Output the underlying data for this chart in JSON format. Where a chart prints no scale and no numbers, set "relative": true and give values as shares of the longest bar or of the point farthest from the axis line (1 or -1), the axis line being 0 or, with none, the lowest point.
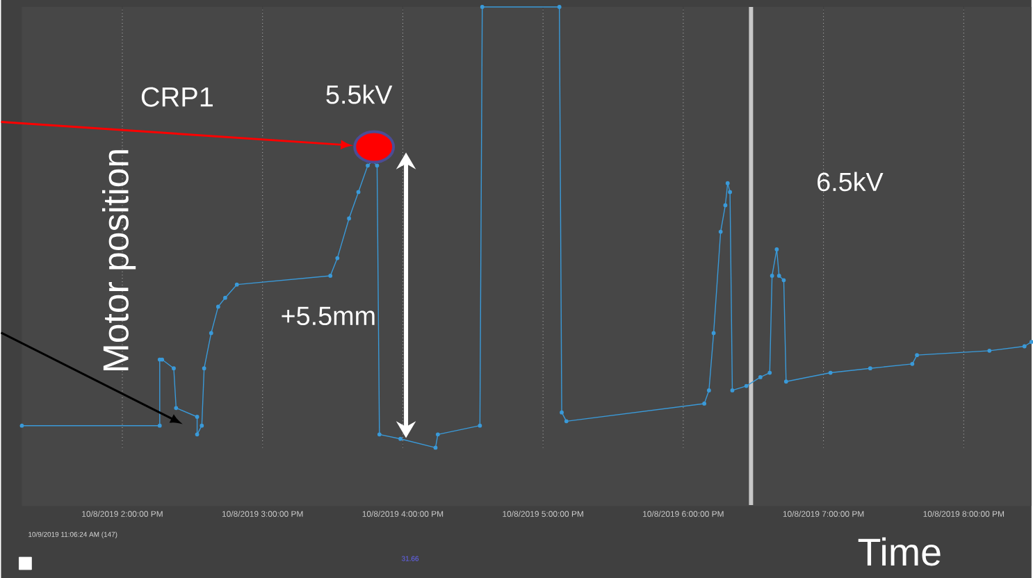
{
  "chart_data": {
    "type": "line",
    "relative": true,
    "xlabel": "Time",
    "ylabel": "Motor position",
    "marker": "circle",
    "grid": "x",
    "xlim": [
      "2019-10-08T13:17",
      "2019-10-08T20:29"
    ],
    "xticks": [
      {
        "value": "2019-10-08T14:00",
        "label": "10/8/2019 2:00:00 PM"
      },
      {
        "value": "2019-10-08T15:00",
        "label": "10/8/2019 3:00:00 PM"
      },
      {
        "value": "2019-10-08T16:00",
        "label": "10/8/2019 4:00:00 PM"
      },
      {
        "value": "2019-10-08T17:00",
        "label": "10/8/2019 5:00:00 PM"
      },
      {
        "value": "2019-10-08T18:00",
        "label": "10/8/2019 6:00:00 PM"
      },
      {
        "value": "2019-10-08T19:00",
        "label": "10/8/2019 7:00:00 PM"
      },
      {
        "value": "2019-10-08T20:00",
        "label": "10/8/2019 8:00:00 PM"
      }
    ],
    "ref_lines": [
      {
        "axis": "x",
        "value": "2019-10-08T18:29",
        "color": "#c8c8c8"
      }
    ],
    "annotations": [
      "CRP1",
      "5.5kV",
      "+5.5mm",
      "6.5kV",
      "10/9/2019 11:06:24 AM (147)",
      "31.66"
    ],
    "series": [
      {
        "color": "#3a9ad9",
        "x": [
          "2019-10-08T13:17",
          "2019-10-08T14:16",
          "2019-10-08T14:16",
          "2019-10-08T14:17",
          "2019-10-08T14:22",
          "2019-10-08T14:23",
          "2019-10-08T14:32",
          "2019-10-08T14:32",
          "2019-10-08T14:34",
          "2019-10-08T14:35",
          "2019-10-08T14:38",
          "2019-10-08T14:41",
          "2019-10-08T14:44",
          "2019-10-08T14:49",
          "2019-10-08T15:29",
          "2019-10-08T15:32",
          "2019-10-08T15:37",
          "2019-10-08T15:41",
          "2019-10-08T15:45",
          "2019-10-08T15:47",
          "2019-10-08T15:49",
          "2019-10-08T15:50",
          "2019-10-08T15:59",
          "2019-10-08T16:14",
          "2019-10-08T16:15",
          "2019-10-08T16:33",
          "2019-10-08T16:34",
          "2019-10-08T17:07",
          "2019-10-08T17:08",
          "2019-10-08T17:10",
          "2019-10-08T18:09",
          "2019-10-08T18:11",
          "2019-10-08T18:13",
          "2019-10-08T18:16",
          "2019-10-08T18:18",
          "2019-10-08T18:19",
          "2019-10-08T18:20",
          "2019-10-08T18:21",
          "2019-10-08T18:27",
          "2019-10-08T18:33",
          "2019-10-08T18:37",
          "2019-10-08T18:38",
          "2019-10-08T18:40",
          "2019-10-08T18:41",
          "2019-10-08T18:43",
          "2019-10-08T18:44",
          "2019-10-08T19:03",
          "2019-10-08T19:20",
          "2019-10-08T19:38",
          "2019-10-08T19:40",
          "2019-10-08T20:11",
          "2019-10-08T20:26",
          "2019-10-08T20:29"
        ],
        "values": [
          0.05,
          0.05,
          0.2,
          0.2,
          0.18,
          0.09,
          0.07,
          0.03,
          0.05,
          0.18,
          0.26,
          0.32,
          0.34,
          0.37,
          0.39,
          0.43,
          0.52,
          0.58,
          0.64,
          0.65,
          0.64,
          0.03,
          0.02,
          0.0,
          0.03,
          0.05,
          1.0,
          1.0,
          0.08,
          0.06,
          0.1,
          0.13,
          0.26,
          0.49,
          0.55,
          0.6,
          0.58,
          0.13,
          0.14,
          0.16,
          0.17,
          0.39,
          0.45,
          0.39,
          0.38,
          0.15,
          0.17,
          0.18,
          0.19,
          0.21,
          0.22,
          0.23,
          0.24
        ]
      }
    ]
  }
}
